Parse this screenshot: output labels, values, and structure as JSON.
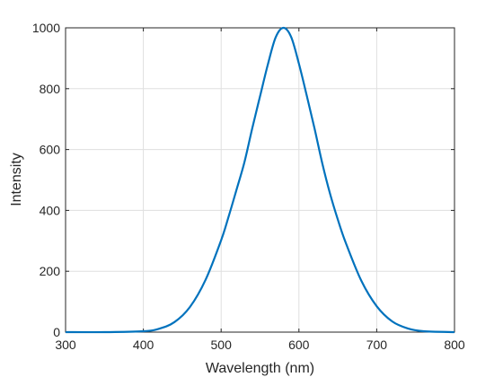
{
  "chart_data": {
    "type": "line",
    "title": "",
    "xlabel": "Wavelength (nm)",
    "ylabel": "Intensity",
    "xlim": [
      300,
      800
    ],
    "ylim": [
      0,
      1000
    ],
    "xticks": [
      300,
      400,
      500,
      600,
      700,
      800
    ],
    "yticks": [
      0,
      200,
      400,
      600,
      800,
      1000
    ],
    "grid": true,
    "series": [
      {
        "color": "#0072BD",
        "x": [
          300,
          350,
          400,
          420,
          440,
          460,
          480,
          500,
          510,
          520,
          530,
          540,
          550,
          560,
          570,
          580,
          590,
          600,
          610,
          620,
          630,
          640,
          650,
          660,
          680,
          700,
          720,
          740,
          760,
          800
        ],
        "y": [
          0,
          0,
          3,
          11,
          33,
          83,
          172,
          302,
          383,
          470,
          559,
          670,
          775,
          879,
          968,
          1000,
          970,
          882,
          778,
          670,
          555,
          455,
          370,
          295,
          170,
          85,
          35,
          12,
          3,
          0
        ]
      }
    ]
  }
}
